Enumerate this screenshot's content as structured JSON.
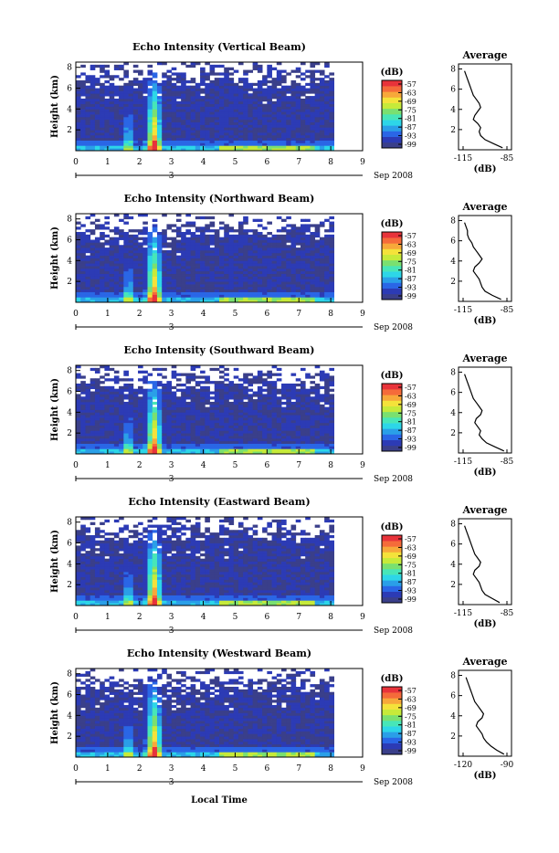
{
  "common": {
    "colorbar_unit": "(dB)",
    "colorbar_ticks": [
      "-57",
      "-63",
      "-69",
      "-75",
      "-81",
      "-87",
      "-93",
      "-99"
    ],
    "height_ylabel": "Height (km)",
    "height_ticks": [
      "8",
      "6",
      "4",
      "2"
    ],
    "time_ticks": [
      "0",
      "1",
      "2",
      "3",
      "4",
      "5",
      "6",
      "7",
      "8",
      "9"
    ],
    "date_day": "3",
    "date_label": "Sep 2008",
    "avg_title": "Average",
    "avg_unit": "(dB)",
    "xlabel": "Local Time",
    "colors": [
      "#3a3f8a",
      "#2c3bb5",
      "#2a66e6",
      "#2a9fe8",
      "#2dd6e8",
      "#47e6b8",
      "#7ae070",
      "#c6ea3a",
      "#f4e23a",
      "#f7a83a",
      "#f56b3a",
      "#e8333a"
    ]
  },
  "chart_data": [
    {
      "type": "heatmap",
      "title": "Echo Intensity (Vertical Beam)",
      "xlim": [
        0,
        9
      ],
      "ylim": [
        0,
        8.5
      ],
      "clim": [
        -99,
        -57
      ],
      "avg_xticks": [
        "-115",
        "-85"
      ],
      "avg_xlim": [
        -115,
        -85
      ],
      "average_profile": {
        "height": [
          0.2,
          0.6,
          1.0,
          1.4,
          1.8,
          2.2,
          2.6,
          3.0,
          3.4,
          3.8,
          4.2,
          4.6,
          5.0,
          5.4,
          5.8,
          6.2,
          6.6,
          7.0,
          7.4,
          7.8
        ],
        "db": [
          -88,
          -94,
          -100,
          -103,
          -104,
          -103,
          -105,
          -108,
          -107,
          -105,
          -103,
          -104,
          -106,
          -108,
          -109,
          -110,
          -111,
          -112,
          -113,
          -114
        ]
      }
    },
    {
      "type": "heatmap",
      "title": "Echo Intensity (Northward Beam)",
      "xlim": [
        0,
        9
      ],
      "ylim": [
        0,
        8.5
      ],
      "clim": [
        -99,
        -57
      ],
      "avg_xticks": [
        "-115",
        "-85"
      ],
      "avg_xlim": [
        -115,
        -85
      ],
      "average_profile": {
        "height": [
          0.2,
          0.6,
          1.0,
          1.4,
          1.8,
          2.2,
          2.6,
          3.0,
          3.4,
          3.8,
          4.2,
          4.6,
          5.0,
          5.4,
          5.8,
          6.2,
          6.6,
          7.0,
          7.4,
          7.8
        ],
        "db": [
          -89,
          -95,
          -100,
          -102,
          -103,
          -104,
          -106,
          -108,
          -107,
          -104,
          -102,
          -104,
          -106,
          -108,
          -109,
          -111,
          -112,
          -112,
          -113,
          -114
        ]
      }
    },
    {
      "type": "heatmap",
      "title": "Echo Intensity (Southward Beam)",
      "xlim": [
        0,
        9
      ],
      "ylim": [
        0,
        8.5
      ],
      "clim": [
        -99,
        -57
      ],
      "avg_xticks": [
        "-115",
        "-85"
      ],
      "avg_xlim": [
        -115,
        -85
      ],
      "average_profile": {
        "height": [
          0.2,
          0.6,
          1.0,
          1.4,
          1.8,
          2.2,
          2.6,
          3.0,
          3.4,
          3.8,
          4.2,
          4.6,
          5.0,
          5.4,
          5.8,
          6.2,
          6.6,
          7.0,
          7.4,
          7.8
        ],
        "db": [
          -87,
          -93,
          -99,
          -102,
          -104,
          -103,
          -105,
          -107,
          -106,
          -103,
          -102,
          -104,
          -106,
          -108,
          -109,
          -110,
          -111,
          -112,
          -113,
          -114
        ]
      }
    },
    {
      "type": "heatmap",
      "title": "Echo Intensity (Eastward Beam)",
      "xlim": [
        0,
        9
      ],
      "ylim": [
        0,
        8.5
      ],
      "clim": [
        -99,
        -57
      ],
      "avg_xticks": [
        "-115",
        "-85"
      ],
      "avg_xlim": [
        -115,
        -85
      ],
      "average_profile": {
        "height": [
          0.2,
          0.6,
          1.0,
          1.4,
          1.8,
          2.2,
          2.6,
          3.0,
          3.4,
          3.8,
          4.2,
          4.6,
          5.0,
          5.4,
          5.8,
          6.2,
          6.6,
          7.0,
          7.4,
          7.8
        ],
        "db": [
          -90,
          -95,
          -100,
          -102,
          -103,
          -104,
          -106,
          -108,
          -107,
          -104,
          -103,
          -105,
          -107,
          -108,
          -109,
          -110,
          -111,
          -112,
          -113,
          -114
        ]
      }
    },
    {
      "type": "heatmap",
      "title": "Echo Intensity (Westward Beam)",
      "xlim": [
        0,
        9
      ],
      "ylim": [
        0,
        8.5
      ],
      "clim": [
        -99,
        -57
      ],
      "avg_xticks": [
        "-120",
        "-90"
      ],
      "avg_xlim": [
        -120,
        -90
      ],
      "average_profile": {
        "height": [
          0.2,
          0.6,
          1.0,
          1.4,
          1.8,
          2.2,
          2.6,
          3.0,
          3.4,
          3.8,
          4.2,
          4.6,
          5.0,
          5.4,
          5.8,
          6.2,
          6.6,
          7.0,
          7.4,
          7.8
        ],
        "db": [
          -92,
          -97,
          -101,
          -104,
          -106,
          -107,
          -109,
          -111,
          -110,
          -107,
          -106,
          -108,
          -110,
          -112,
          -113,
          -114,
          -115,
          -116,
          -117,
          -118
        ]
      }
    }
  ]
}
